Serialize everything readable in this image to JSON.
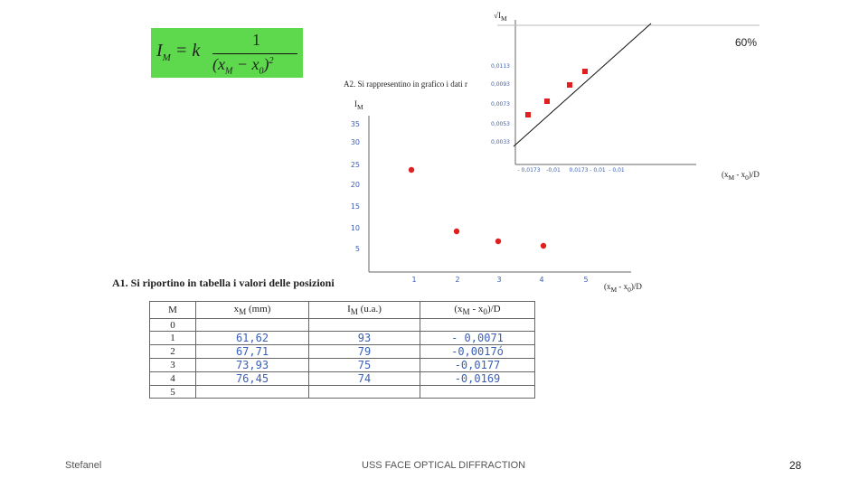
{
  "formula": {
    "lhs": "I",
    "lhs_sub": "M",
    "rhs_k": "= k",
    "numerator": "1",
    "denominator": "(x",
    "den_sub1": "M",
    "den_mid": " − x",
    "den_sub2": "0",
    "den_close": ")",
    "exponent": "2"
  },
  "zoom": "60%",
  "main_plot": {
    "title": "A2. Si rappresentino in grafico i dati r",
    "ylabel": "I",
    "ylabel_sub": "M",
    "xlabel": "(x",
    "xlabel_sub1": "M",
    "xlabel_mid": " - x",
    "xlabel_sub2": "0",
    "xlabel_end": ")/D",
    "yticks": [
      "35",
      "30",
      "25",
      "20",
      "15",
      "10",
      "5"
    ],
    "xticks": [
      "1",
      "2",
      "3",
      "4",
      "5"
    ]
  },
  "inset_plot": {
    "ylabel": "√I",
    "ylabel_sub": "M",
    "xlabel": "(x",
    "xlabel_sub1": "M",
    "xlabel_mid": " - x",
    "xlabel_sub2": "0",
    "xlabel_end": ")/D",
    "yticks": [
      "0,0113",
      "0,0093",
      "0,0073",
      "0,0053",
      "0,0033"
    ],
    "xticks": [
      "- 0,0173",
      "-0,01",
      "0,0173",
      "- 0,01",
      "- 0,01"
    ]
  },
  "table": {
    "title": "A1. Si riportino in tabella i valori delle posizioni",
    "headers": {
      "m": "M",
      "x": "x",
      "x_sub": "M",
      "x_unit": " (mm)",
      "i": "I",
      "i_sub": "M",
      "i_unit": " (u.a.)",
      "r_open": "(x",
      "r_sub1": "M",
      "r_mid": " - x",
      "r_sub2": "0",
      "r_end": ")/D"
    },
    "rows": [
      {
        "m": "0",
        "x": "",
        "i": "",
        "r": ""
      },
      {
        "m": "1",
        "x": "61,62",
        "i": "93",
        "r": "- 0,0071"
      },
      {
        "m": "2",
        "x": "67,71",
        "i": "79",
        "r": "-0,0017ó"
      },
      {
        "m": "3",
        "x": "73,93",
        "i": "75",
        "r": "-0,0177"
      },
      {
        "m": "4",
        "x": "76,45",
        "i": "74",
        "r": "-0,0169"
      },
      {
        "m": "5",
        "x": "",
        "i": "",
        "r": ""
      }
    ]
  },
  "footer": {
    "author": "Stefanel",
    "title": "USS FACE OPTICAL DIFFRACTION",
    "page": "28"
  }
}
